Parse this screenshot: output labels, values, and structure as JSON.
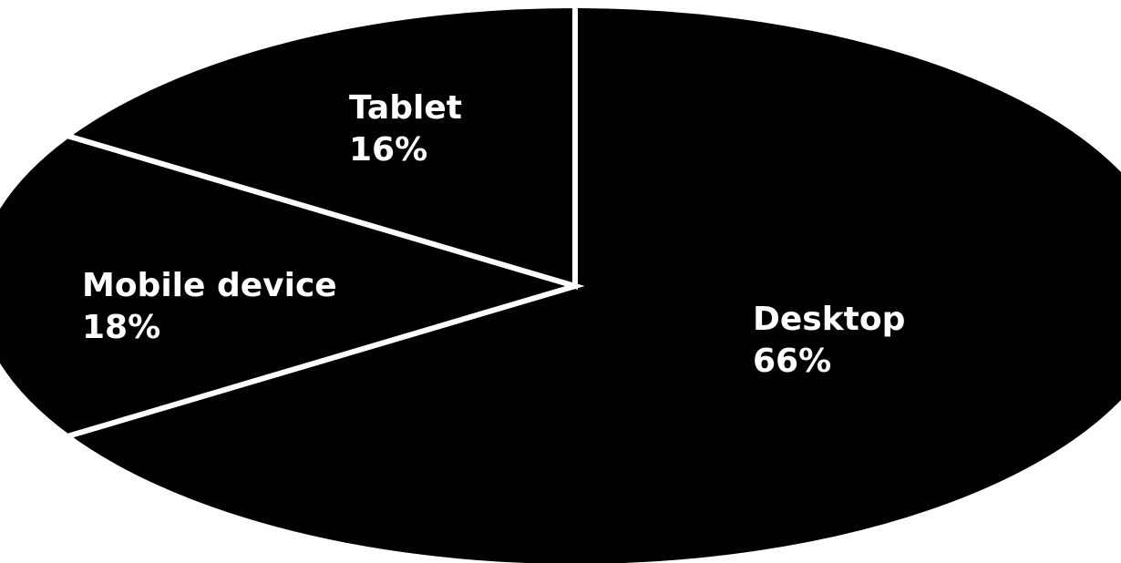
{
  "chart_data": {
    "type": "pie",
    "slices": [
      {
        "label": "Desktop",
        "value": 66,
        "value_label": "66%",
        "color": "#000000"
      },
      {
        "label": "Mobile device",
        "value": 18,
        "value_label": "18%",
        "color": "#000000"
      },
      {
        "label": "Tablet",
        "value": 16,
        "value_label": "16%",
        "color": "#000000"
      }
    ],
    "start": "12 o'clock",
    "direction": "clockwise",
    "perspective": "tilted (oval)",
    "separator_color": "#ffffff",
    "label_color": "#ffffff"
  }
}
